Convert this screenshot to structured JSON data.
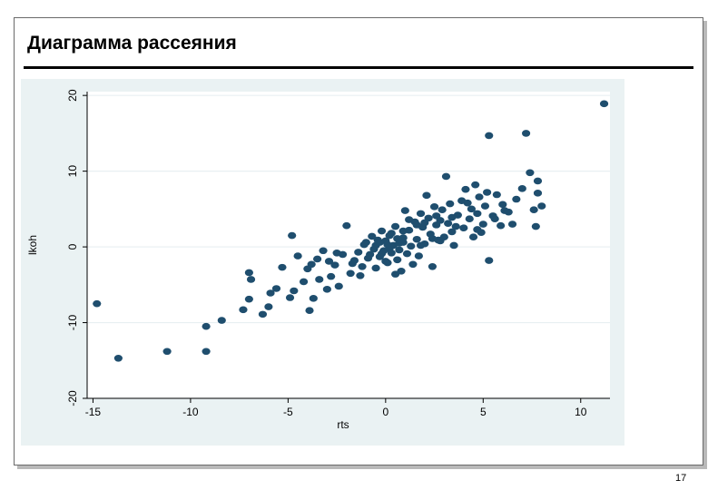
{
  "slide": {
    "title": "Диаграмма рассеяния",
    "page_number": "17"
  },
  "colors": {
    "marker": "#1f4e6e",
    "panel": "#eaf2f3",
    "plot_bg": "#ffffff",
    "grid": "#e8eff2"
  },
  "chart_data": {
    "type": "scatter",
    "title": "",
    "xlabel": "rts",
    "ylabel": "lkoh",
    "xlim": [
      -15.3,
      11.5
    ],
    "ylim": [
      -20,
      20.5
    ],
    "xticks": [
      -15,
      -10,
      -5,
      0,
      5,
      10
    ],
    "yticks": [
      -20,
      -10,
      0,
      10,
      20
    ],
    "grid": true,
    "series": [
      {
        "points": [
          [
            -14.8,
            -7.5
          ],
          [
            -13.7,
            -14.7
          ],
          [
            -11.2,
            -13.8
          ],
          [
            -9.2,
            -13.8
          ],
          [
            -9.2,
            -10.5
          ],
          [
            -8.4,
            -9.7
          ],
          [
            -7.3,
            -8.3
          ],
          [
            -7.0,
            -3.4
          ],
          [
            -6.9,
            -4.3
          ],
          [
            -7.0,
            -6.9
          ],
          [
            -6.3,
            -8.9
          ],
          [
            -6.0,
            -7.9
          ],
          [
            -5.9,
            -6.1
          ],
          [
            -5.6,
            -5.5
          ],
          [
            -5.3,
            -2.7
          ],
          [
            -4.8,
            1.5
          ],
          [
            -4.9,
            -6.7
          ],
          [
            -4.7,
            -5.8
          ],
          [
            -4.5,
            -1.2
          ],
          [
            -4.2,
            -4.6
          ],
          [
            -4.0,
            -2.9
          ],
          [
            -3.9,
            -8.4
          ],
          [
            -3.7,
            -6.8
          ],
          [
            -3.5,
            -1.6
          ],
          [
            -3.4,
            -4.3
          ],
          [
            -3.2,
            -0.5
          ],
          [
            -3.0,
            -5.6
          ],
          [
            -2.8,
            -3.9
          ],
          [
            -2.6,
            -2.4
          ],
          [
            -2.4,
            -5.2
          ],
          [
            -2.2,
            -1.0
          ],
          [
            -2.0,
            2.8
          ],
          [
            -1.8,
            -3.5
          ],
          [
            -1.6,
            -1.8
          ],
          [
            -1.4,
            -0.7
          ],
          [
            -1.2,
            -2.6
          ],
          [
            -1.0,
            0.6
          ],
          [
            -0.9,
            -1.5
          ],
          [
            -0.7,
            1.4
          ],
          [
            -0.6,
            -0.3
          ],
          [
            -0.5,
            -2.8
          ],
          [
            -0.4,
            0.9
          ],
          [
            -0.3,
            -1.3
          ],
          [
            -0.2,
            2.1
          ],
          [
            -0.1,
            -0.5
          ],
          [
            0.0,
            0.8
          ],
          [
            0.1,
            -2.1
          ],
          [
            0.2,
            1.5
          ],
          [
            0.3,
            -0.8
          ],
          [
            0.4,
            0.2
          ],
          [
            0.5,
            2.7
          ],
          [
            0.6,
            -1.7
          ],
          [
            0.7,
            0.5
          ],
          [
            0.8,
            -3.2
          ],
          [
            0.9,
            1.2
          ],
          [
            1.0,
            4.8
          ],
          [
            1.1,
            -0.9
          ],
          [
            1.2,
            2.2
          ],
          [
            1.3,
            0.1
          ],
          [
            1.4,
            -2.3
          ],
          [
            1.5,
            3.3
          ],
          [
            1.6,
            1.0
          ],
          [
            1.7,
            -1.2
          ],
          [
            1.8,
            4.4
          ],
          [
            1.9,
            2.6
          ],
          [
            2.0,
            0.4
          ],
          [
            2.1,
            6.8
          ],
          [
            2.2,
            3.8
          ],
          [
            2.3,
            1.7
          ],
          [
            2.4,
            -2.6
          ],
          [
            2.5,
            5.3
          ],
          [
            2.6,
            2.9
          ],
          [
            2.7,
            0.9
          ],
          [
            2.8,
            3.5
          ],
          [
            2.9,
            4.9
          ],
          [
            3.0,
            1.3
          ],
          [
            3.1,
            9.3
          ],
          [
            3.2,
            3.1
          ],
          [
            3.3,
            5.7
          ],
          [
            3.4,
            2.0
          ],
          [
            3.5,
            0.2
          ],
          [
            3.7,
            4.2
          ],
          [
            3.9,
            6.1
          ],
          [
            4.0,
            2.5
          ],
          [
            4.1,
            7.6
          ],
          [
            4.3,
            3.7
          ],
          [
            4.4,
            5.0
          ],
          [
            4.5,
            1.3
          ],
          [
            4.6,
            8.2
          ],
          [
            4.7,
            4.4
          ],
          [
            4.8,
            6.6
          ],
          [
            5.0,
            3.0
          ],
          [
            5.1,
            5.4
          ],
          [
            5.2,
            7.2
          ],
          [
            5.3,
            14.7
          ],
          [
            5.3,
            -1.8
          ],
          [
            5.5,
            4.1
          ],
          [
            5.7,
            6.9
          ],
          [
            5.9,
            2.8
          ],
          [
            6.0,
            5.6
          ],
          [
            6.3,
            4.6
          ],
          [
            6.5,
            3.0
          ],
          [
            6.7,
            6.3
          ],
          [
            7.0,
            7.7
          ],
          [
            7.2,
            15.0
          ],
          [
            7.4,
            9.8
          ],
          [
            7.6,
            4.9
          ],
          [
            7.7,
            2.7
          ],
          [
            7.8,
            8.7
          ],
          [
            7.8,
            7.1
          ],
          [
            8.0,
            5.4
          ],
          [
            11.2,
            18.9
          ],
          [
            -2.9,
            -1.9
          ],
          [
            -1.3,
            -3.8
          ],
          [
            0.5,
            -3.6
          ],
          [
            -0.8,
            -1.0
          ],
          [
            0.9,
            0.6
          ],
          [
            1.6,
            2.9
          ],
          [
            2.4,
            1.1
          ],
          [
            3.6,
            2.7
          ],
          [
            -1.7,
            -2.2
          ],
          [
            -0.2,
            -0.9
          ],
          [
            0.3,
            1.8
          ],
          [
            0.9,
            2.1
          ],
          [
            1.2,
            3.6
          ],
          [
            2.0,
            3.2
          ],
          [
            2.8,
            0.8
          ],
          [
            3.4,
            3.9
          ],
          [
            4.2,
            5.8
          ],
          [
            4.9,
            1.9
          ],
          [
            -3.8,
            -2.3
          ],
          [
            -2.5,
            -0.8
          ],
          [
            -1.1,
            0.3
          ],
          [
            0.0,
            -1.9
          ],
          [
            0.7,
            -0.4
          ],
          [
            1.8,
            0.2
          ],
          [
            2.6,
            4.1
          ],
          [
            4.7,
            2.3
          ],
          [
            5.6,
            3.7
          ],
          [
            6.1,
            4.8
          ],
          [
            -0.5,
            0.2
          ],
          [
            0.2,
            -0.2
          ],
          [
            0.6,
            1.1
          ],
          [
            -0.3,
            0.6
          ],
          [
            0.1,
            0.3
          ]
        ]
      }
    ]
  }
}
